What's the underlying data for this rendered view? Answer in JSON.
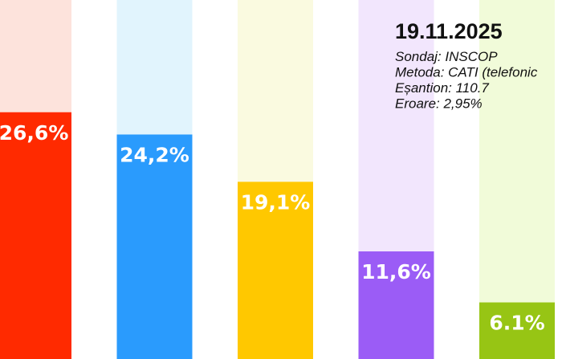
{
  "chart_data": {
    "type": "bar",
    "values": [
      26.6,
      24.2,
      19.1,
      11.6,
      6.1
    ],
    "value_labels": [
      "26,6%",
      "24,2%",
      "19,1%",
      "11,6%",
      "6.1%"
    ],
    "colors": [
      "#ff2a00",
      "#2a9bfd",
      "#ffc800",
      "#9b5cf6",
      "#97c514"
    ],
    "background_colors": [
      "#fde3dc",
      "#e1f4fd",
      "#fafae0",
      "#f2e6fd",
      "#f1fbd9"
    ],
    "ylim": [
      0,
      38.7
    ],
    "annotation": {
      "title": "19.11.2025",
      "lines": [
        "Sondaj: INSCOP",
        "Metoda: CATI (telefonic",
        "Eșantion: 110.7",
        "Eroare: 2,95%"
      ]
    }
  }
}
